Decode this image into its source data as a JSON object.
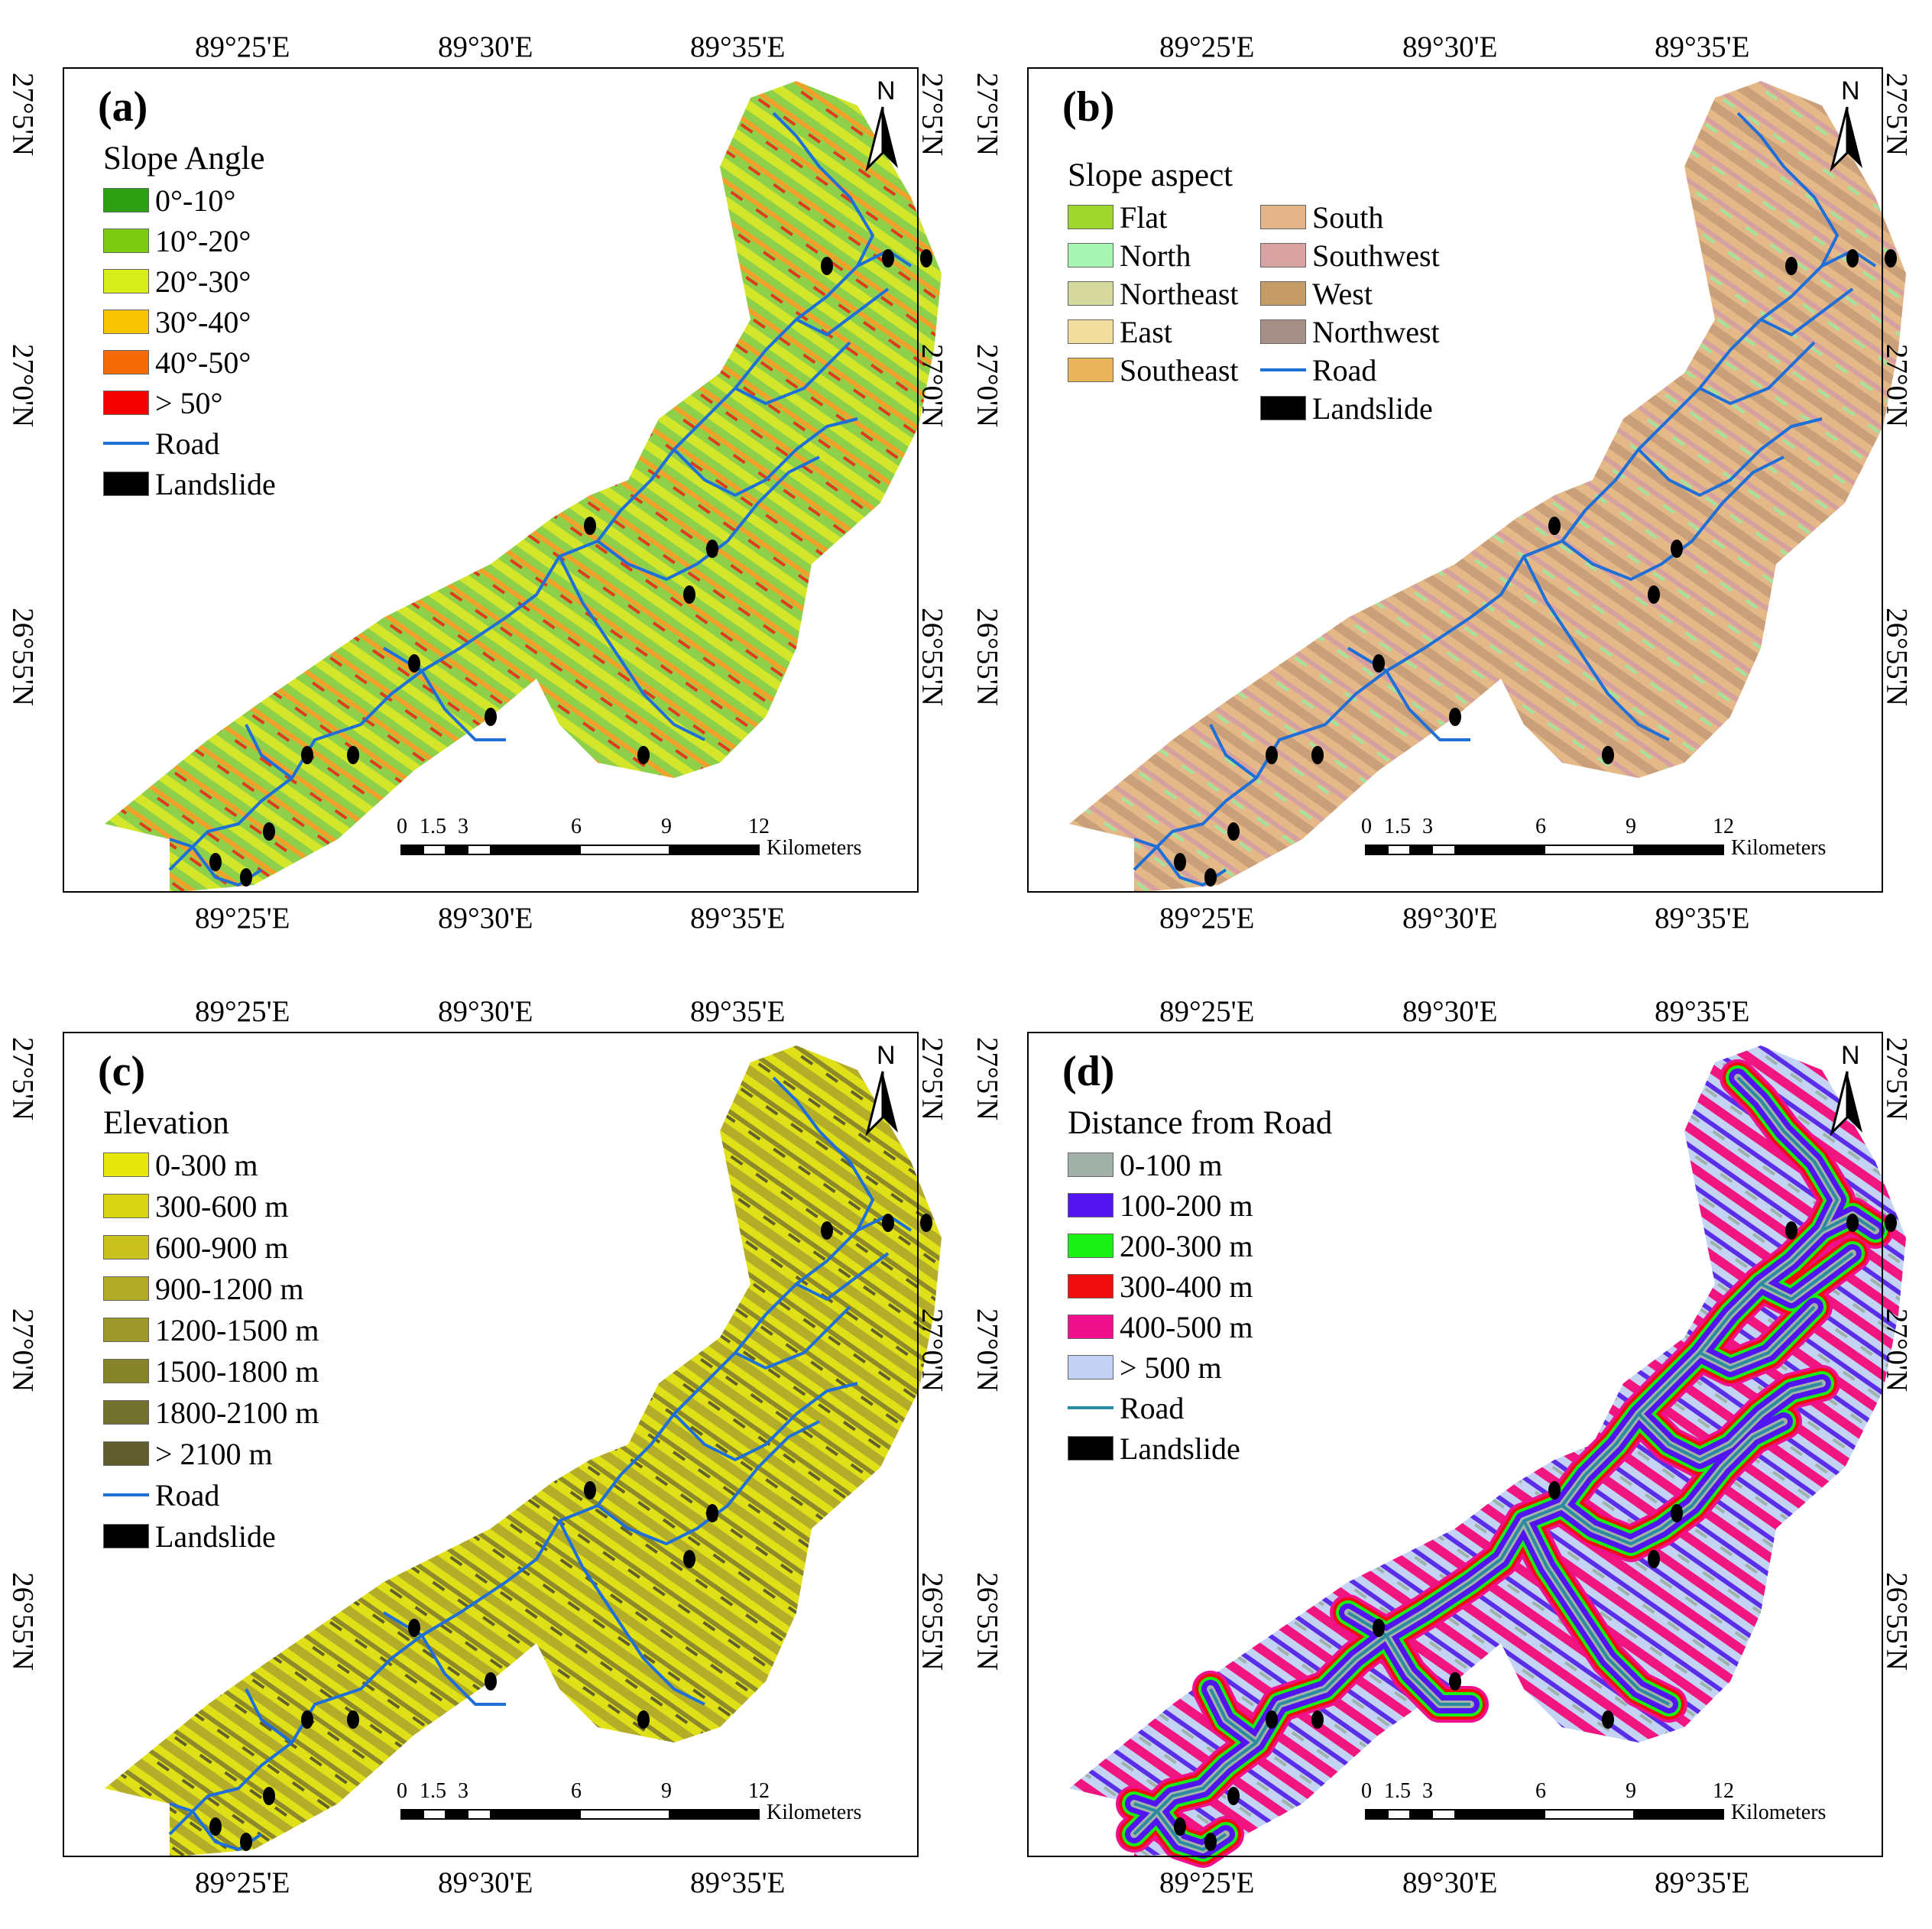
{
  "panels": [
    {
      "label": "(a)",
      "legend_title": "Slope Angle",
      "legend_columns": 1,
      "map_fill": [
        "#8fd04a",
        "#d3e62a",
        "#f3a02a",
        "#e23a1a"
      ],
      "items": [
        {
          "label": "0°-10°",
          "color": "#2e9e12",
          "kind": "box"
        },
        {
          "label": "10°-20°",
          "color": "#7ccb10",
          "kind": "box"
        },
        {
          "label": "20°-30°",
          "color": "#d8ee1a",
          "kind": "box"
        },
        {
          "label": "30°-40°",
          "color": "#f6c400",
          "kind": "box"
        },
        {
          "label": "40°-50°",
          "color": "#f46a06",
          "kind": "box"
        },
        {
          "label": "> 50°",
          "color": "#f40000",
          "kind": "box"
        },
        {
          "label": "Road",
          "color": "#1f6fd6",
          "kind": "line"
        },
        {
          "label": "Landslide",
          "color": "#000000",
          "kind": "box"
        }
      ]
    },
    {
      "label": "(b)",
      "legend_title": "Slope aspect",
      "legend_columns": 2,
      "map_fill": [
        "#e4b887",
        "#c9a07a",
        "#d6a0a0",
        "#a3e3a0"
      ],
      "items": [
        {
          "label": "Flat",
          "color": "#9fd62c",
          "kind": "box"
        },
        {
          "label": "North",
          "color": "#a8f5b4",
          "kind": "box"
        },
        {
          "label": "Northeast",
          "color": "#d5d89c",
          "kind": "box"
        },
        {
          "label": "East",
          "color": "#f3dd9e",
          "kind": "box"
        },
        {
          "label": "Southeast",
          "color": "#e9b55a",
          "kind": "box"
        },
        {
          "label": "South",
          "color": "#e3b488",
          "kind": "box"
        },
        {
          "label": "Southwest",
          "color": "#d9a3a4",
          "kind": "box"
        },
        {
          "label": "West",
          "color": "#c59c66",
          "kind": "box"
        },
        {
          "label": "Northwest",
          "color": "#a58f86",
          "kind": "box"
        },
        {
          "label": "Road",
          "color": "#1f6fd6",
          "kind": "line"
        },
        {
          "label": "Landslide",
          "color": "#000000",
          "kind": "box"
        }
      ]
    },
    {
      "label": "(c)",
      "legend_title": "Elevation",
      "legend_columns": 1,
      "map_fill": [
        "#dfe018",
        "#b3ad2a",
        "#8e8a2a",
        "#615f2c"
      ],
      "items": [
        {
          "label": "0-300 m",
          "color": "#e6e60a",
          "kind": "box"
        },
        {
          "label": "300-600 m",
          "color": "#d9d413",
          "kind": "box"
        },
        {
          "label": "600-900 m",
          "color": "#c9c21e",
          "kind": "box"
        },
        {
          "label": "900-1200 m",
          "color": "#b2ab28",
          "kind": "box"
        },
        {
          "label": "1200-1500 m",
          "color": "#9d982b",
          "kind": "box"
        },
        {
          "label": "1500-1800 m",
          "color": "#87852b",
          "kind": "box"
        },
        {
          "label": "1800-2100 m",
          "color": "#71702c",
          "kind": "box"
        },
        {
          "label": "> 2100 m",
          "color": "#5f5c2d",
          "kind": "box"
        },
        {
          "label": "Road",
          "color": "#1f6fd6",
          "kind": "line"
        },
        {
          "label": "Landslide",
          "color": "#000000",
          "kind": "box"
        }
      ]
    },
    {
      "label": "(d)",
      "legend_title": "Distance from Road",
      "legend_columns": 1,
      "map_fill": [
        "#c4d2f4",
        "#f0157f",
        "#5a2de8",
        "#9fb2a9"
      ],
      "items": [
        {
          "label": "0-100 m",
          "color": "#a3b2a8",
          "kind": "box"
        },
        {
          "label": "100-200 m",
          "color": "#5214f0",
          "kind": "box"
        },
        {
          "label": "200-300 m",
          "color": "#1aef14",
          "kind": "box"
        },
        {
          "label": "300-400 m",
          "color": "#f00d0d",
          "kind": "box"
        },
        {
          "label": "400-500 m",
          "color": "#f0108c",
          "kind": "box"
        },
        {
          "label": "> 500 m",
          "color": "#c3d1f3",
          "kind": "box"
        },
        {
          "label": "Road",
          "color": "#2a8aa0",
          "kind": "line"
        },
        {
          "label": "Landslide",
          "color": "#000000",
          "kind": "box"
        }
      ]
    }
  ],
  "coords": {
    "lon": [
      "89°25'E",
      "89°30'E",
      "89°35'E"
    ],
    "lat": [
      "27°5'N",
      "27°0'N",
      "26°55'N"
    ]
  },
  "north_label": "N",
  "scale": {
    "ticks": [
      "0",
      "1.5",
      "3",
      "6",
      "9",
      "12"
    ],
    "unit": "Kilometers"
  }
}
